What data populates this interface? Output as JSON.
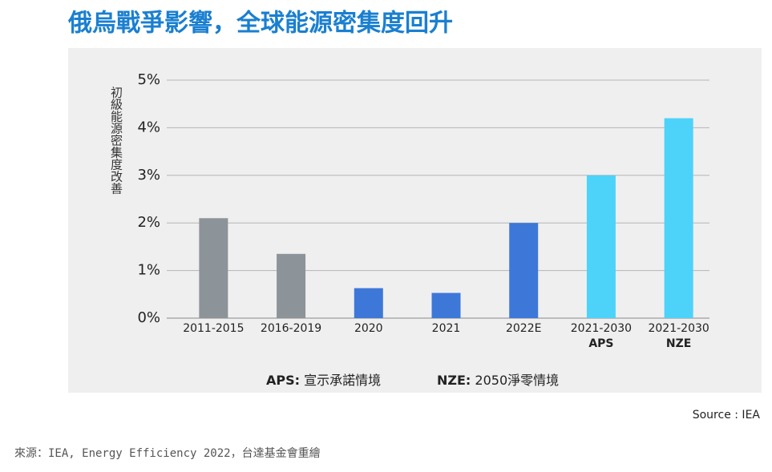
{
  "chart_data": {
    "type": "bar",
    "title": "俄烏戰爭影響，全球能源密集度回升",
    "y_label": "初級能源密集度改善",
    "categories": [
      "2011-2015",
      "2016-2019",
      "2020",
      "2021",
      "2022E",
      "2021-2030",
      "2021-2030"
    ],
    "category_sublabels": [
      null,
      null,
      null,
      null,
      null,
      "APS",
      "NZE"
    ],
    "values": [
      2.1,
      1.35,
      0.63,
      0.53,
      2.0,
      3.0,
      4.2
    ],
    "colors": [
      "#8c9399",
      "#8c9399",
      "#3d78d8",
      "#3d78d8",
      "#3d78d8",
      "#4dd2fa",
      "#4dd2fa"
    ],
    "ylim": [
      0,
      5
    ],
    "yticks": [
      {
        "value": 0,
        "label": "0%"
      },
      {
        "value": 1,
        "label": "1%"
      },
      {
        "value": 2,
        "label": "2%"
      },
      {
        "value": 3,
        "label": "3%"
      },
      {
        "value": 4,
        "label": "4%"
      },
      {
        "value": 5,
        "label": "5%"
      }
    ],
    "grid": true,
    "notes": [
      {
        "key": "APS:",
        "text": "宣示承諾情境"
      },
      {
        "key": "NZE:",
        "text": "2050淨零情境"
      }
    ],
    "source": "Source : IEA",
    "footer": "來源：IEA, Energy Efficiency 2022，台達基金會重繪"
  }
}
